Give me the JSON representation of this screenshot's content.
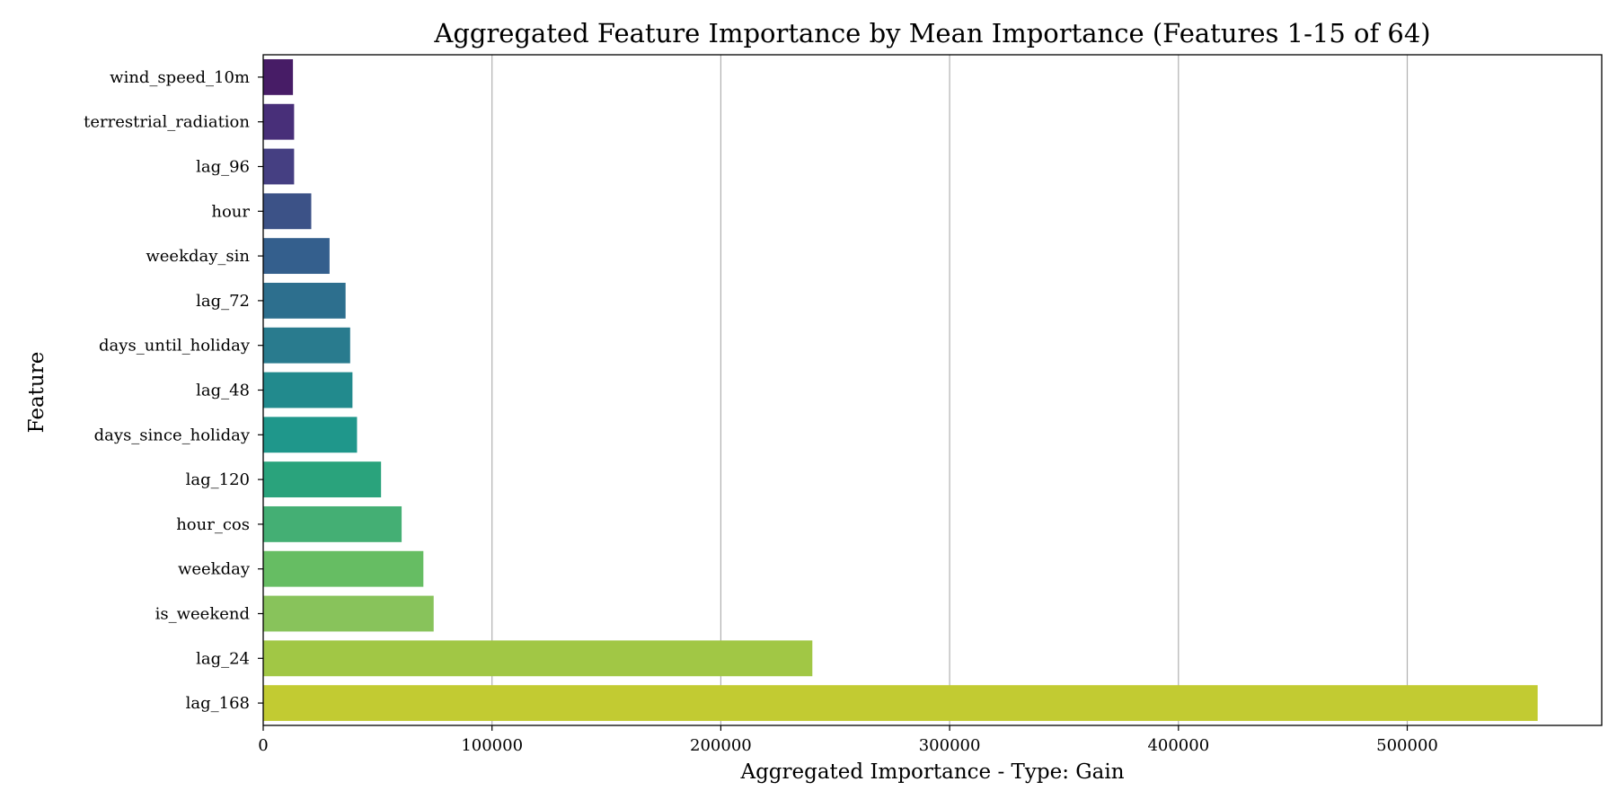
{
  "chart_data": {
    "type": "bar",
    "orientation": "horizontal",
    "title": "Aggregated Feature Importance by Mean Importance (Features 1-15 of 64)",
    "xlabel": "Aggregated Importance - Type: Gain",
    "ylabel": "Feature",
    "xlim": [
      0,
      585000
    ],
    "xticks": [
      0,
      100000,
      200000,
      300000,
      400000,
      500000
    ],
    "xtick_labels": [
      "0",
      "100000",
      "200000",
      "300000",
      "400000",
      "500000"
    ],
    "grid": "vertical",
    "categories": [
      "wind_speed_10m",
      "terrestrial_radiation",
      "lag_96",
      "hour",
      "weekday_sin",
      "lag_72",
      "days_until_holiday",
      "lag_48",
      "days_since_holiday",
      "lag_120",
      "hour_cos",
      "weekday",
      "is_weekend",
      "lag_24",
      "lag_168"
    ],
    "values": [
      13000,
      13500,
      13500,
      21000,
      29000,
      36000,
      38000,
      39000,
      41000,
      51500,
      60500,
      70000,
      74500,
      240000,
      557000
    ],
    "colors": [
      "#471c66",
      "#482f79",
      "#453f82",
      "#3c5287",
      "#345f8d",
      "#2d6f8e",
      "#297b8e",
      "#228a8d",
      "#1f978b",
      "#2aa37c",
      "#44af74",
      "#66bd63",
      "#88c35b",
      "#a1c745",
      "#c2cb32"
    ]
  }
}
